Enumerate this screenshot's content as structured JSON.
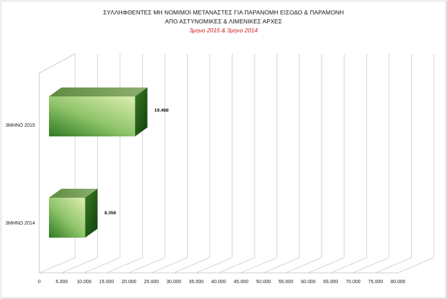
{
  "chart_data": {
    "type": "bar",
    "orientation": "horizontal",
    "style": "3d",
    "title_lines": [
      "ΣΥΛΛΗΦΘΕΝΤΕΣ  ΜΗ ΝΟΜΙΜΟΙ ΜΕΤΑΝΑΣΤΕΣ ΓΙΑ ΠΑΡΑΝΟΜΗ ΕΙΣΟΔΟ & ΠΑΡΑΜΟΝΗ",
      "ΑΠΟ ΑΣΤΥΝΟΜΙΚΕΣ & ΛΙΜΕΝΙΚΕΣ ΑΡΧΕΣ"
    ],
    "subtitle": "3μηνο 2015  &  3μηνο 2014",
    "categories": [
      "3ΜΗΝΟ 2015",
      "3ΜΗΝΟ 2014"
    ],
    "values": [
      19488,
      8356
    ],
    "data_labels": [
      "19.488",
      "8.356"
    ],
    "xlim": [
      0,
      80000
    ],
    "x_ticks": [
      "0",
      "5.000",
      "10.000",
      "15.000",
      "20.000",
      "25.000",
      "30.000",
      "35.000",
      "40.000",
      "45.000",
      "50.000",
      "55.000",
      "60.000",
      "65.000",
      "70.000",
      "75.000",
      "80.000"
    ],
    "grid": true,
    "legend": "none",
    "colors": {
      "bar_light": "#d4e9a8",
      "bar_mid": "#8fc46a",
      "bar_dark": "#2f7a22",
      "bar_top": "#6f9a4e",
      "bar_side": "#1d5412",
      "grid": "#c8c8c8"
    }
  }
}
